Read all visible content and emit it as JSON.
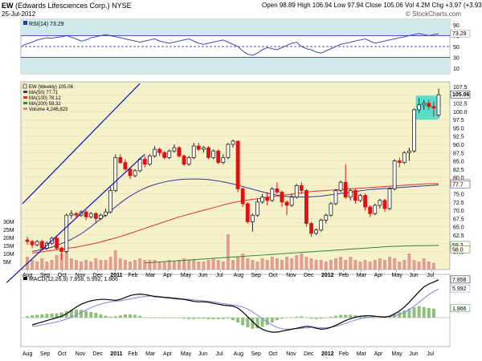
{
  "header": {
    "symbol": "EW",
    "company": "(Edwards Lifesciences Corp.)",
    "exchange": "NYSE",
    "date": "25-Jul-2012",
    "open_label": "Open",
    "open": "98.89",
    "high_label": "High",
    "high": "106.94",
    "low_label": "Low",
    "low": "97.94",
    "close_label": "Close",
    "close": "105.06",
    "vol_label": "Vol",
    "volume": "4.2M",
    "chg_label": "Chg",
    "change": "+3.97 (+3.93%)",
    "change_arrow": "▲",
    "watermark": "© StockCharts.com"
  },
  "colors": {
    "panel_bg": "#f5f1c9",
    "rsi_bg": "#cfe9ea",
    "up": "#222222",
    "down": "#e01010",
    "ma50": "#333399",
    "ma100": "#e03030",
    "ma200": "#2e8b2e",
    "volume": "#d98888",
    "macd_line": "#000000",
    "signal": "#8080e0",
    "hist": "#8fbf7a",
    "trend": "#1010c0",
    "highlight": "#35d8c8"
  },
  "chart_data": [
    {
      "type": "line",
      "title": "RSI(14) 73.29",
      "series": [
        {
          "name": "RSI(14)",
          "values": [
            52,
            55,
            58,
            62,
            64,
            66,
            65,
            67,
            68,
            70,
            67,
            64,
            60,
            62,
            66,
            68,
            70,
            72,
            70,
            68,
            66,
            64,
            62,
            60,
            58,
            60,
            62,
            64,
            60,
            58,
            56,
            58,
            60,
            62,
            64,
            60,
            56,
            54,
            56,
            58,
            60,
            62,
            58,
            54,
            50,
            42,
            36,
            34,
            38,
            44,
            48,
            46,
            44,
            48,
            52,
            56,
            58,
            50,
            46,
            44,
            40,
            38,
            42,
            46,
            50,
            54,
            56,
            58,
            60,
            62,
            64,
            60,
            56,
            58,
            60,
            62,
            64,
            66,
            68,
            70,
            72,
            74,
            72,
            70,
            72,
            73.29
          ]
        }
      ],
      "y_ticks": [
        10,
        30,
        50,
        70,
        90
      ],
      "ref_lines": [
        30,
        50,
        70
      ],
      "value_labels": [
        {
          "value": 73.29,
          "text": "73.29"
        }
      ]
    },
    {
      "type": "bar",
      "title": "EW (Weekly) 105.06",
      "legend": [
        {
          "name": "EW (Weekly) 105.06",
          "kind": "candle"
        },
        {
          "name": "MA(50) 77.71",
          "kind": "line",
          "color": "#333399"
        },
        {
          "name": "MA(100) 78.12",
          "kind": "line",
          "color": "#e03030"
        },
        {
          "name": "MA(200) 59.32",
          "kind": "line",
          "color": "#2e8b2e"
        },
        {
          "name": "Volume 4,246,823",
          "kind": "bar",
          "color": "#d98888"
        }
      ],
      "x_tick_labels": [
        "Aug",
        "Sep",
        "Oct",
        "Nov",
        "Dec",
        "2011",
        "Feb",
        "Mar",
        "Apr",
        "May",
        "Jun",
        "Jul",
        "Aug",
        "Sep",
        "Oct",
        "Nov",
        "Dec",
        "2012",
        "Feb",
        "Mar",
        "Apr",
        "May",
        "Jun",
        "Jul",
        "Aug"
      ],
      "y_tick_labels": [
        57.5,
        60.0,
        62.5,
        65.0,
        67.5,
        70.0,
        72.5,
        75.0,
        77.5,
        80.0,
        82.5,
        85.0,
        87.5,
        90.0,
        92.5,
        95.0,
        97.5,
        100.0,
        102.5,
        105.0,
        107.5
      ],
      "ylim": [
        52,
        109
      ],
      "volume_tick_labels": [
        "5M",
        "10M",
        "15M",
        "20M",
        "25M",
        "30M"
      ],
      "volume_max": 35,
      "value_labels": [
        {
          "value": 105.06,
          "text": "105.06"
        },
        {
          "value": 78.12,
          "text": "78.1"
        },
        {
          "value": 77.71,
          "text": "77.7"
        },
        {
          "value": 59.32,
          "text": "59.3"
        },
        {
          "value": 58.0,
          "text": "58.0"
        }
      ],
      "candles": [
        [
          61.0,
          60.5,
          62.0,
          59.5
        ],
        [
          60.5,
          59.5,
          61.0,
          58.5
        ],
        [
          59.5,
          60.5,
          61.0,
          59.0
        ],
        [
          60.5,
          58.5,
          61.0,
          58.0
        ],
        [
          58.5,
          60.0,
          60.5,
          58.0
        ],
        [
          60.0,
          61.5,
          62.0,
          59.5
        ],
        [
          61.5,
          58.5,
          62.0,
          58.0
        ],
        [
          58.5,
          57.5,
          59.0,
          55.0
        ],
        [
          57.5,
          68.5,
          69.0,
          57.0
        ],
        [
          68.5,
          69.0,
          70.0,
          67.5
        ],
        [
          69.0,
          68.5,
          69.5,
          67.5
        ],
        [
          68.5,
          69.5,
          70.0,
          68.0
        ],
        [
          69.5,
          68.0,
          70.0,
          67.0
        ],
        [
          68.0,
          69.0,
          69.5,
          67.5
        ],
        [
          69.0,
          67.5,
          69.5,
          66.0
        ],
        [
          67.5,
          68.5,
          69.0,
          67.0
        ],
        [
          68.5,
          69.5,
          70.5,
          68.0
        ],
        [
          69.5,
          76.0,
          77.0,
          69.0
        ],
        [
          76.0,
          86.0,
          87.0,
          75.5
        ],
        [
          86.0,
          84.5,
          87.0,
          84.0
        ],
        [
          84.5,
          82.5,
          85.5,
          82.0
        ],
        [
          82.5,
          80.5,
          83.0,
          79.5
        ],
        [
          80.5,
          82.0,
          82.5,
          80.0
        ],
        [
          82.0,
          85.5,
          86.0,
          81.5
        ],
        [
          85.5,
          84.0,
          86.5,
          83.0
        ],
        [
          84.0,
          86.5,
          87.0,
          83.5
        ],
        [
          86.5,
          88.5,
          89.5,
          86.0
        ],
        [
          88.5,
          87.5,
          89.0,
          86.5
        ],
        [
          87.5,
          86.0,
          88.0,
          85.5
        ],
        [
          86.0,
          88.0,
          88.5,
          85.5
        ],
        [
          88.0,
          89.0,
          90.0,
          87.5
        ],
        [
          89.0,
          86.5,
          89.5,
          86.0
        ],
        [
          86.5,
          84.0,
          87.0,
          83.5
        ],
        [
          84.0,
          86.0,
          86.5,
          83.5
        ],
        [
          86.0,
          89.5,
          90.5,
          85.5
        ],
        [
          89.5,
          88.5,
          90.5,
          88.0
        ],
        [
          88.5,
          89.0,
          89.5,
          87.5
        ],
        [
          89.0,
          86.0,
          89.5,
          85.5
        ],
        [
          86.0,
          88.0,
          88.5,
          85.5
        ],
        [
          88.0,
          84.5,
          88.5,
          84.0
        ],
        [
          84.5,
          86.0,
          87.0,
          84.0
        ],
        [
          86.0,
          90.0,
          90.5,
          85.5
        ],
        [
          90.0,
          91.0,
          91.5,
          89.0
        ],
        [
          91.0,
          76.5,
          91.0,
          75.5
        ],
        [
          76.5,
          72.0,
          77.0,
          71.0
        ],
        [
          72.0,
          66.5,
          72.5,
          66.0
        ],
        [
          66.5,
          68.5,
          69.0,
          63.5
        ],
        [
          68.5,
          72.5,
          73.5,
          68.0
        ],
        [
          72.5,
          74.0,
          75.0,
          72.0
        ],
        [
          74.0,
          73.0,
          75.5,
          71.5
        ],
        [
          73.0,
          76.5,
          77.0,
          72.5
        ],
        [
          76.5,
          75.5,
          78.5,
          75.0
        ],
        [
          75.5,
          72.5,
          76.0,
          71.0
        ],
        [
          72.5,
          71.5,
          73.0,
          68.5
        ],
        [
          71.5,
          74.0,
          75.0,
          71.0
        ],
        [
          74.0,
          77.5,
          78.0,
          73.5
        ],
        [
          77.5,
          76.0,
          78.5,
          75.0
        ],
        [
          76.0,
          66.0,
          76.5,
          65.0
        ],
        [
          66.0,
          63.0,
          66.5,
          62.0
        ],
        [
          63.0,
          64.0,
          64.5,
          62.5
        ],
        [
          64.0,
          67.0,
          67.5,
          63.5
        ],
        [
          67.0,
          68.5,
          69.0,
          66.0
        ],
        [
          68.5,
          72.0,
          72.5,
          68.0
        ],
        [
          72.0,
          76.0,
          76.5,
          71.5
        ],
        [
          76.0,
          78.5,
          79.0,
          75.5
        ],
        [
          78.5,
          74.0,
          84.0,
          73.5
        ],
        [
          74.0,
          76.0,
          76.5,
          73.0
        ],
        [
          76.0,
          73.0,
          76.5,
          72.0
        ],
        [
          73.0,
          74.5,
          75.0,
          72.5
        ],
        [
          74.5,
          71.0,
          75.0,
          70.0
        ],
        [
          71.0,
          69.0,
          71.5,
          68.0
        ],
        [
          69.0,
          71.5,
          72.0,
          68.5
        ],
        [
          71.5,
          73.0,
          73.5,
          70.5
        ],
        [
          73.0,
          70.5,
          73.5,
          69.5
        ],
        [
          70.5,
          76.5,
          77.0,
          70.0
        ],
        [
          76.5,
          85.0,
          85.5,
          76.0
        ],
        [
          85.0,
          84.5,
          86.0,
          83.0
        ],
        [
          84.5,
          87.5,
          88.0,
          84.0
        ],
        [
          87.5,
          88.0,
          89.0,
          85.0
        ],
        [
          88.0,
          100.5,
          101.0,
          87.5
        ],
        [
          100.5,
          102.0,
          104.0,
          99.5
        ],
        [
          102.0,
          102.5,
          103.5,
          100.5
        ],
        [
          102.5,
          101.5,
          103.5,
          100.5
        ],
        [
          101.5,
          101.0,
          103.0,
          98.5
        ],
        [
          98.89,
          105.06,
          106.94,
          97.94
        ]
      ],
      "ma50": [
        57.5,
        57.8,
        58.1,
        58.4,
        58.8,
        59.3,
        59.9,
        60.5,
        61.2,
        62.0,
        62.9,
        63.9,
        65.0,
        66.2,
        67.4,
        68.6,
        69.8,
        71.0,
        72.2,
        73.3,
        74.3,
        75.2,
        76.0,
        76.7,
        77.3,
        77.8,
        78.2,
        78.6,
        78.9,
        79.1,
        79.3,
        79.4,
        79.5,
        79.5,
        79.5,
        79.4,
        79.3,
        79.1,
        78.9,
        78.6,
        78.3,
        78.0,
        77.6,
        77.2,
        76.8,
        76.4,
        76.0,
        75.6,
        75.2,
        74.9,
        74.6,
        74.4,
        74.2,
        74.1,
        74.0,
        74.0,
        74.0,
        74.1,
        74.2,
        74.3,
        74.5,
        74.7,
        74.9,
        75.1,
        75.3,
        75.5,
        75.7,
        75.9,
        76.1,
        76.3,
        76.4,
        76.5,
        76.6,
        76.7,
        76.8,
        76.9,
        77.0,
        77.1,
        77.2,
        77.3,
        77.4,
        77.5,
        77.6,
        77.71
      ],
      "ma100": [
        57.0,
        57.2,
        57.4,
        57.6,
        57.8,
        58.0,
        58.2,
        58.4,
        58.6,
        58.8,
        59.1,
        59.4,
        59.7,
        60.0,
        60.4,
        60.8,
        61.2,
        61.6,
        62.0,
        62.5,
        63.0,
        63.5,
        64.0,
        64.5,
        65.0,
        65.5,
        66.0,
        66.5,
        67.0,
        67.5,
        68.0,
        68.4,
        68.8,
        69.2,
        69.6,
        70.0,
        70.4,
        70.8,
        71.2,
        71.6,
        72.0,
        72.3,
        72.6,
        72.9,
        73.1,
        73.3,
        73.5,
        73.7,
        73.9,
        74.1,
        74.3,
        74.5,
        74.7,
        74.9,
        75.1,
        75.3,
        75.5,
        75.7,
        75.8,
        75.9,
        76.0,
        76.1,
        76.2,
        76.3,
        76.4,
        76.5,
        76.6,
        76.7,
        76.8,
        76.9,
        77.0,
        77.1,
        77.2,
        77.3,
        77.4,
        77.5,
        77.6,
        77.7,
        77.8,
        77.9,
        78.0,
        78.05,
        78.1,
        78.12
      ],
      "ma200": [
        54.0,
        54.1,
        54.2,
        54.3,
        54.4,
        54.5,
        54.6,
        54.7,
        54.8,
        54.9,
        55.0,
        55.1,
        55.2,
        55.3,
        55.4,
        55.5,
        55.6,
        55.7,
        55.8,
        55.9,
        56.0,
        56.1,
        56.2,
        56.3,
        56.4,
        56.5,
        56.6,
        56.7,
        56.8,
        56.9,
        57.0,
        57.1,
        57.2,
        57.3,
        57.4,
        57.5,
        57.6,
        57.7,
        57.8,
        57.9,
        58.0,
        58.1,
        58.2,
        58.3,
        58.4,
        58.5,
        58.6,
        58.7,
        58.8,
        58.9,
        59.0,
        59.05,
        59.1,
        59.15,
        59.2,
        59.22,
        59.24,
        59.26,
        59.28,
        59.3,
        59.32
      ],
      "volume_M": [
        8,
        6,
        5,
        7,
        5,
        6,
        9,
        10,
        14,
        7,
        6,
        5,
        6,
        5,
        7,
        6,
        6,
        8,
        12,
        7,
        6,
        5,
        6,
        7,
        6,
        6,
        6,
        5,
        5,
        6,
        5,
        6,
        7,
        6,
        6,
        5,
        5,
        6,
        7,
        6,
        5,
        22,
        6,
        8,
        10,
        7,
        6,
        5,
        7,
        6,
        8,
        7,
        6,
        8,
        7,
        9,
        10,
        8,
        7,
        6,
        6,
        5,
        6,
        7,
        8,
        6,
        8,
        6,
        5,
        6,
        5,
        6,
        7,
        6,
        8,
        7,
        5,
        6,
        10,
        6,
        5,
        7,
        5,
        4.2
      ]
    },
    {
      "type": "line",
      "title": "MACD(12,26,9) 7.858, 5.992, 1.866",
      "series": [
        {
          "name": "MACD(12,26,9)",
          "values": [
            -1.5,
            -1.2,
            -0.9,
            -0.6,
            -0.3,
            0.0,
            0.3,
            0.8,
            1.5,
            2.2,
            2.8,
            3.2,
            3.5,
            3.7,
            3.8,
            3.8,
            3.7,
            3.6,
            3.8,
            4.2,
            4.6,
            4.8,
            4.9,
            4.8,
            4.6,
            4.4,
            4.3,
            4.2,
            4.1,
            4.0,
            3.9,
            3.8,
            3.6,
            3.4,
            3.3,
            3.3,
            3.2,
            3.0,
            2.8,
            2.6,
            2.5,
            2.4,
            2.0,
            1.2,
            0.2,
            -0.8,
            -1.8,
            -2.4,
            -2.8,
            -3.0,
            -3.0,
            -2.8,
            -2.6,
            -2.4,
            -2.2,
            -2.0,
            -1.8,
            -1.9,
            -2.2,
            -2.4,
            -2.3,
            -2.0,
            -1.6,
            -1.1,
            -0.6,
            -0.2,
            0.1,
            0.3,
            0.4,
            0.4,
            0.3,
            0.2,
            0.1,
            0.3,
            0.8,
            1.4,
            2.2,
            3.2,
            4.3,
            5.4,
            6.4,
            7.0,
            7.4,
            7.858
          ]
        },
        {
          "name": "Signal",
          "values": [
            -1.8,
            -1.7,
            -1.5,
            -1.3,
            -1.1,
            -0.9,
            -0.6,
            -0.3,
            0.1,
            0.6,
            1.1,
            1.6,
            2.1,
            2.5,
            2.8,
            3.1,
            3.3,
            3.4,
            3.5,
            3.7,
            3.9,
            4.1,
            4.3,
            4.4,
            4.5,
            4.5,
            4.4,
            4.3,
            4.2,
            4.1,
            4.0,
            3.9,
            3.8,
            3.7,
            3.6,
            3.5,
            3.4,
            3.3,
            3.1,
            2.9,
            2.8,
            2.6,
            2.5,
            2.2,
            1.8,
            1.2,
            0.5,
            -0.2,
            -0.9,
            -1.5,
            -2.0,
            -2.3,
            -2.4,
            -2.4,
            -2.3,
            -2.2,
            -2.1,
            -2.0,
            -2.0,
            -2.1,
            -2.1,
            -2.0,
            -1.8,
            -1.5,
            -1.2,
            -0.8,
            -0.5,
            -0.2,
            0.0,
            0.1,
            0.2,
            0.2,
            0.2,
            0.2,
            0.4,
            0.7,
            1.1,
            1.7,
            2.4,
            3.2,
            4.0,
            4.8,
            5.4,
            5.992
          ]
        }
      ],
      "value_labels": [
        {
          "value": 7.858,
          "text": "7.858"
        },
        {
          "value": 5.992,
          "text": "5.992"
        },
        {
          "value": 1.866,
          "text": "1.866"
        }
      ],
      "ylim": [
        -6,
        9
      ]
    }
  ]
}
